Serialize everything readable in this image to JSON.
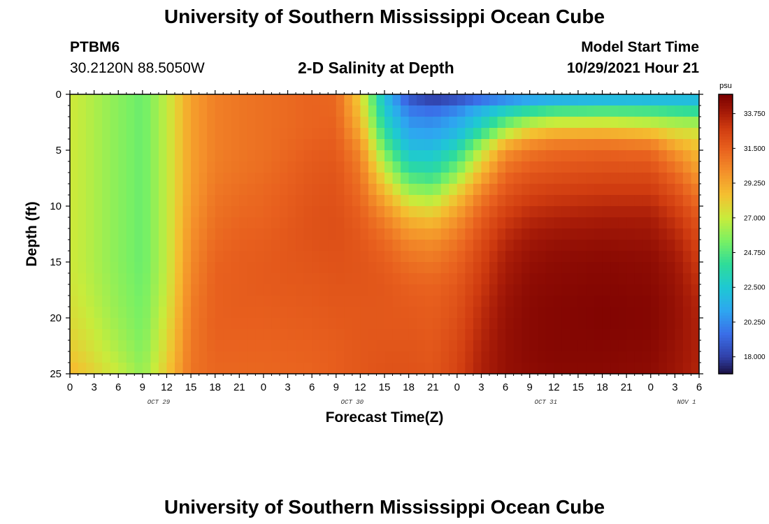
{
  "header": {
    "title": "University of Southern Mississippi Ocean Cube",
    "station_id": "PTBM6",
    "station_coords": "30.2120N  88.5050W",
    "chart_subtitle": "2-D Salinity at Depth",
    "model_start_label": "Model Start Time",
    "model_start_value": "10/29/2021 Hour 21"
  },
  "footer": {
    "title": "University of Southern Mississippi Ocean Cube"
  },
  "chart_data": {
    "type": "heatmap",
    "title": "2-D Salinity at Depth",
    "xlabel": "Forecast Time(Z)",
    "ylabel": "Depth (ft)",
    "x_hours_range": [
      0,
      78
    ],
    "ylim": [
      0,
      25
    ],
    "y_ticks": [
      "0",
      "5",
      "10",
      "15",
      "20",
      "25"
    ],
    "x_ticks": [
      "0",
      "3",
      "6",
      "9",
      "12",
      "15",
      "18",
      "21",
      "0",
      "3",
      "6",
      "9",
      "12",
      "15",
      "18",
      "21",
      "0",
      "3",
      "6",
      "9",
      "12",
      "15",
      "18",
      "21",
      "0",
      "3",
      "6"
    ],
    "date_labels": [
      {
        "text": "OCT 29",
        "hour": 11
      },
      {
        "text": "OCT 30",
        "hour": 35
      },
      {
        "text": "OCT 31",
        "hour": 59
      },
      {
        "text": "NOV 1",
        "hour": 83
      }
    ],
    "colorbar": {
      "unit": "psu",
      "min": 16.9,
      "max": 35.0,
      "ticks": [
        "33.750",
        "31.500",
        "29.250",
        "27.000",
        "24.750",
        "22.500",
        "20.250",
        "18.000"
      ],
      "tick_values": [
        33.75,
        31.5,
        29.25,
        27.0,
        24.75,
        22.5,
        20.25,
        18.0
      ]
    },
    "colormap": [
      [
        16.9,
        "#1a1040"
      ],
      [
        18.0,
        "#3040a8"
      ],
      [
        19.5,
        "#3a6ee8"
      ],
      [
        21.0,
        "#2ea6f0"
      ],
      [
        22.5,
        "#1ec8d4"
      ],
      [
        24.0,
        "#2edc9a"
      ],
      [
        25.5,
        "#78f064"
      ],
      [
        27.0,
        "#c8ec3c"
      ],
      [
        28.5,
        "#f4c030"
      ],
      [
        30.0,
        "#f4902a"
      ],
      [
        31.5,
        "#e8601e"
      ],
      [
        32.8,
        "#d03c10"
      ],
      [
        33.8,
        "#a81c08"
      ],
      [
        35.0,
        "#7a0000"
      ]
    ],
    "salinity_grid_time_hours": [
      0,
      6,
      9,
      12,
      15,
      18,
      21,
      24,
      30,
      33,
      36,
      39,
      42,
      45,
      48,
      51,
      54,
      57,
      60,
      66,
      72,
      75,
      78
    ],
    "salinity_grid_depths_ft": [
      0,
      1,
      2,
      3,
      4,
      5,
      7,
      9,
      11,
      13,
      15,
      17,
      19,
      21,
      23,
      25
    ],
    "salinity_grid": [
      [
        27.2,
        25.8,
        25.2,
        26.9,
        29.5,
        30.5,
        30.8,
        31.0,
        31.4,
        31.3,
        28.0,
        22.0,
        18.3,
        17.2,
        17.8,
        18.6,
        19.2,
        19.8,
        20.2,
        20.6,
        20.8,
        21.0,
        21.2
      ],
      [
        27.2,
        25.8,
        25.2,
        26.9,
        29.5,
        30.5,
        30.8,
        31.0,
        31.4,
        31.3,
        28.2,
        22.4,
        19.5,
        19.0,
        19.6,
        20.8,
        21.8,
        22.5,
        23.0,
        23.2,
        23.2,
        23.0,
        22.8
      ],
      [
        27.2,
        25.8,
        25.2,
        26.9,
        29.5,
        30.5,
        30.8,
        31.0,
        31.4,
        31.4,
        28.6,
        23.0,
        20.2,
        20.0,
        20.8,
        22.5,
        24.2,
        25.4,
        26.0,
        26.2,
        25.8,
        25.4,
        25.2
      ],
      [
        27.2,
        25.8,
        25.2,
        26.9,
        29.5,
        30.5,
        30.8,
        31.0,
        31.4,
        31.5,
        29.0,
        23.6,
        20.8,
        20.6,
        21.4,
        23.2,
        25.8,
        27.4,
        28.0,
        28.0,
        27.6,
        27.2,
        27.0
      ],
      [
        27.2,
        25.8,
        25.2,
        26.9,
        29.5,
        30.5,
        30.8,
        31.0,
        31.5,
        31.6,
        29.6,
        24.4,
        21.4,
        21.2,
        22.4,
        25.2,
        28.0,
        29.4,
        30.0,
        30.2,
        29.8,
        28.4,
        27.8
      ],
      [
        27.2,
        25.8,
        25.2,
        26.9,
        29.5,
        30.5,
        30.8,
        31.0,
        31.6,
        31.7,
        30.2,
        25.4,
        22.2,
        22.2,
        23.6,
        26.8,
        29.8,
        30.8,
        31.2,
        31.4,
        31.2,
        29.8,
        28.6
      ],
      [
        27.2,
        25.8,
        25.2,
        26.9,
        29.5,
        30.6,
        30.9,
        31.1,
        31.8,
        31.9,
        30.8,
        27.2,
        24.2,
        23.8,
        25.8,
        28.8,
        31.2,
        31.8,
        32.0,
        32.2,
        32.2,
        31.2,
        29.6
      ],
      [
        27.2,
        25.8,
        25.2,
        26.9,
        29.6,
        30.8,
        31.1,
        31.3,
        31.9,
        32.0,
        31.2,
        29.0,
        26.6,
        26.2,
        28.2,
        30.6,
        32.0,
        32.6,
        32.8,
        33.0,
        33.0,
        32.2,
        30.8
      ],
      [
        27.2,
        25.8,
        25.2,
        26.9,
        29.8,
        31.0,
        31.3,
        31.4,
        32.0,
        32.1,
        31.6,
        30.4,
        28.8,
        28.4,
        29.8,
        31.6,
        32.8,
        33.4,
        33.6,
        33.8,
        33.8,
        33.0,
        31.8
      ],
      [
        27.2,
        25.8,
        25.2,
        26.9,
        30.0,
        31.2,
        31.5,
        31.6,
        32.0,
        32.1,
        31.8,
        31.2,
        30.2,
        30.0,
        30.8,
        32.2,
        33.4,
        34.0,
        34.2,
        34.3,
        34.2,
        33.6,
        32.4
      ],
      [
        27.2,
        25.8,
        25.2,
        26.9,
        30.2,
        31.4,
        31.6,
        31.7,
        31.9,
        32.0,
        31.9,
        31.6,
        31.0,
        30.8,
        31.4,
        32.6,
        33.8,
        34.3,
        34.5,
        34.6,
        34.5,
        34.0,
        32.8
      ],
      [
        27.3,
        25.9,
        25.3,
        27.0,
        30.4,
        31.5,
        31.6,
        31.7,
        31.8,
        31.9,
        31.9,
        31.8,
        31.5,
        31.4,
        31.8,
        32.9,
        34.0,
        34.5,
        34.6,
        34.7,
        34.6,
        34.2,
        33.2
      ],
      [
        27.5,
        26.0,
        25.4,
        27.2,
        30.6,
        31.5,
        31.6,
        31.6,
        31.7,
        31.8,
        31.8,
        31.8,
        31.7,
        31.6,
        32.0,
        33.2,
        34.2,
        34.6,
        34.7,
        34.8,
        34.7,
        34.3,
        33.5
      ],
      [
        27.8,
        26.2,
        25.5,
        27.5,
        30.7,
        31.5,
        31.5,
        31.5,
        31.6,
        31.7,
        31.8,
        31.8,
        31.8,
        31.7,
        32.2,
        33.4,
        34.3,
        34.6,
        34.7,
        34.8,
        34.7,
        34.3,
        33.6
      ],
      [
        28.2,
        26.5,
        25.7,
        27.8,
        30.8,
        31.4,
        31.4,
        31.4,
        31.5,
        31.6,
        31.8,
        31.9,
        31.9,
        31.8,
        32.4,
        33.6,
        34.3,
        34.6,
        34.7,
        34.7,
        34.6,
        34.2,
        33.6
      ],
      [
        28.8,
        27.0,
        26.0,
        28.2,
        30.9,
        31.3,
        31.3,
        31.3,
        31.4,
        31.6,
        31.8,
        32.0,
        32.0,
        31.9,
        32.5,
        33.7,
        34.3,
        34.5,
        34.6,
        34.6,
        34.5,
        34.1,
        33.5
      ]
    ]
  }
}
